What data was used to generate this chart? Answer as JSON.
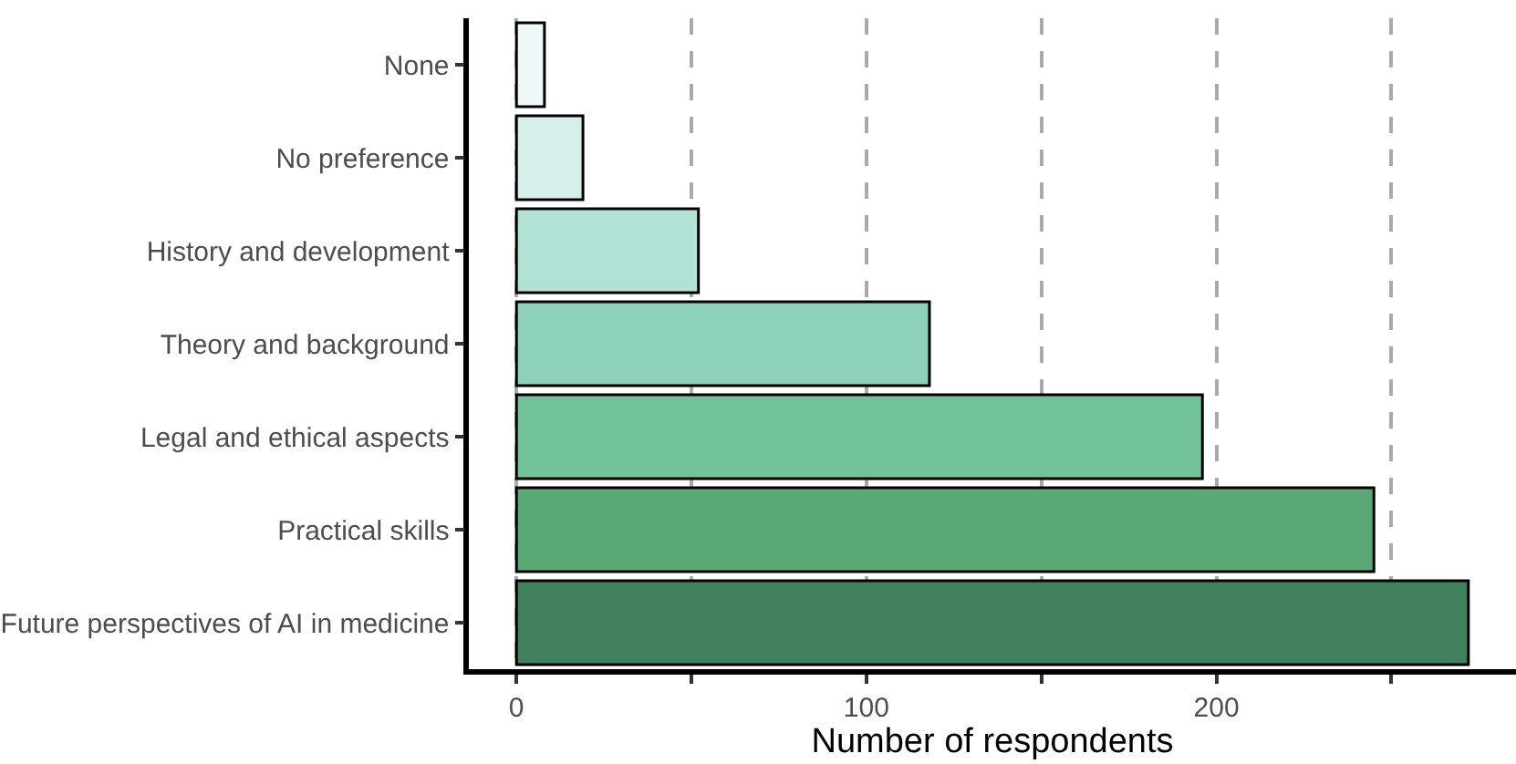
{
  "chart_data": {
    "type": "bar",
    "orientation": "horizontal",
    "xlabel": "Number of respondents",
    "categories": [
      "None",
      "No preference",
      "History and development",
      "Theory and background",
      "Legal and ethical aspects",
      "Practical skills",
      "Future perspectives of AI in medicine"
    ],
    "values": [
      8,
      19,
      52,
      118,
      196,
      245,
      272
    ],
    "colors": [
      "#eef8f8",
      "#d6efea",
      "#b2e2d5",
      "#8ed1b9",
      "#72c29a",
      "#5aa876",
      "#41805d"
    ],
    "xlim": [
      -13.6,
      285.6
    ],
    "xticks": [
      0,
      {
        "value": 50,
        "label": null
      },
      100,
      {
        "value": 150,
        "label": null
      },
      200,
      {
        "value": 250,
        "label": null
      }
    ],
    "grid": "x"
  }
}
